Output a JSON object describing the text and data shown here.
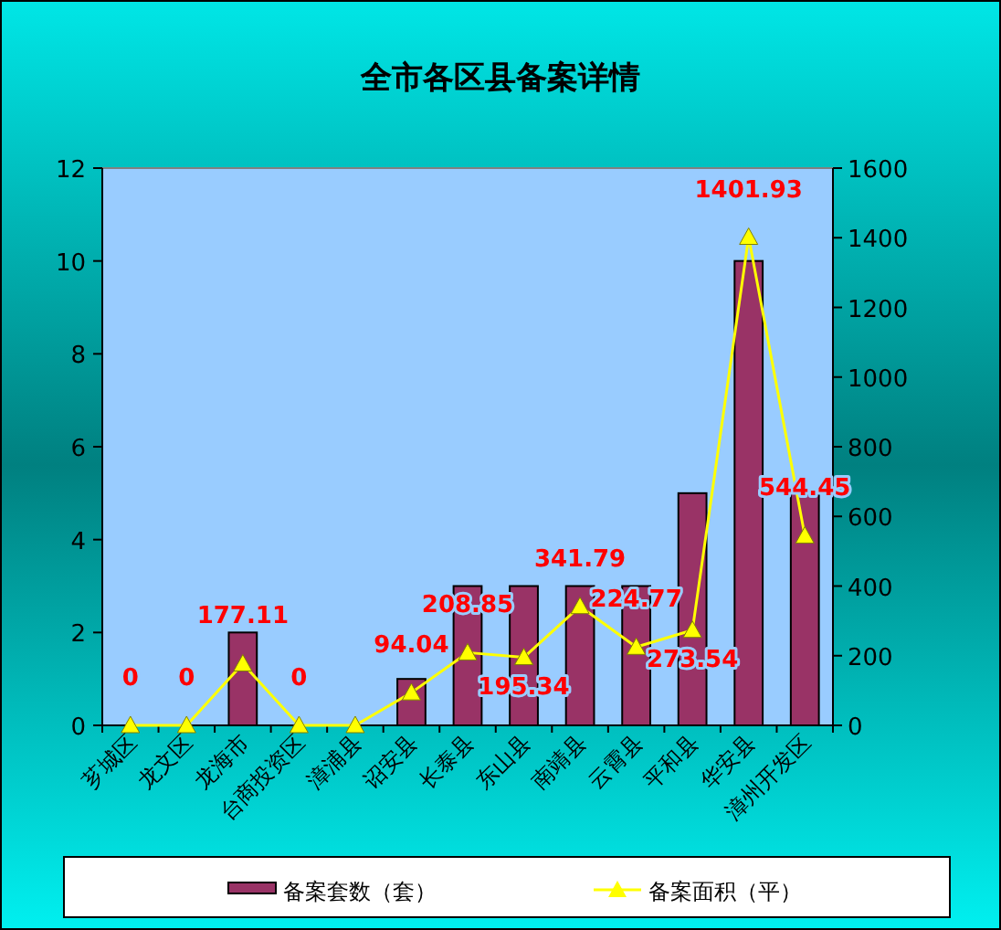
{
  "chart_data": {
    "type": "bar",
    "title": "全市各区县备案详情",
    "categories": [
      "芗城区",
      "龙文区",
      "龙海市",
      "台商投资区",
      "漳浦县",
      "诏安县",
      "长泰县",
      "东山县",
      "南靖县",
      "云霄县",
      "平和县",
      "华安县",
      "漳州开发区"
    ],
    "series": [
      {
        "name": "备案套数（套）",
        "color": "#993366",
        "values": [
          0,
          0,
          2,
          0,
          0,
          1,
          3,
          3,
          3,
          3,
          5,
          10,
          5
        ]
      },
      {
        "name": "备案面积（平）",
        "type": "line",
        "axis": "y2",
        "color": "#ffff00",
        "marker": "triangle",
        "values": [
          0,
          0,
          177.11,
          0,
          0,
          94.04,
          208.85,
          195.34,
          341.79,
          224.77,
          273.54,
          1401.93,
          544.45
        ],
        "value_labels": [
          "0",
          "0",
          "177.11",
          "0",
          null,
          "94.04",
          "208.85",
          "195.34",
          "341.79",
          "224.77",
          "273.54",
          "1401.93",
          "544.45"
        ]
      }
    ],
    "ylim": [
      0,
      12
    ],
    "yticks": [
      0,
      2,
      4,
      6,
      8,
      10,
      12
    ],
    "y2lim": [
      0,
      1600
    ],
    "y2ticks": [
      0,
      200,
      400,
      600,
      800,
      1000,
      1200,
      1400,
      1600
    ],
    "legend": "bottom"
  }
}
